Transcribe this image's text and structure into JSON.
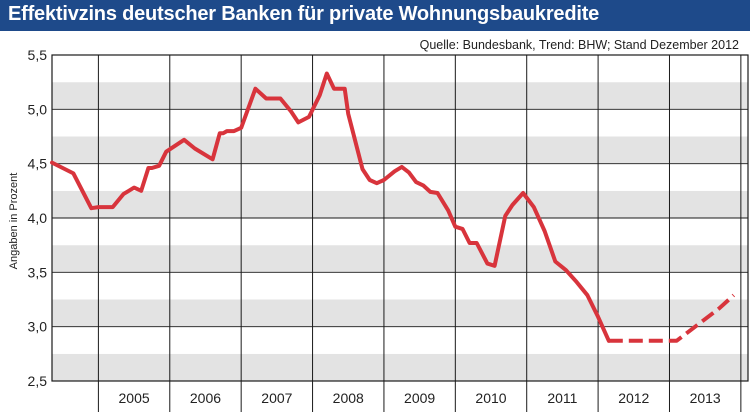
{
  "title": "Effektivzins deutscher Banken für private Wohnungsbaukredite",
  "colors": {
    "title_bg": "#1e4a8a",
    "title_text": "#ffffff",
    "band_shaded": "#e3e3e3",
    "band_white": "#ffffff",
    "line": "#d8343c",
    "grid": "#1a1a1a"
  },
  "chart_data": {
    "type": "line",
    "title": "Effektivzins deutscher Banken für private Wohnungsbaukredite",
    "source": "Quelle: Bundesbank, Trend: BHW; Stand Dezember 2012",
    "ylabel": "Angaben in Prozent",
    "xlabel": "",
    "ylim": [
      2.5,
      5.5
    ],
    "yticks": [
      "2,5",
      "3,0",
      "3,5",
      "4,0",
      "4,5",
      "5,0",
      "5,5"
    ],
    "ytick_values": [
      2.5,
      3.0,
      3.5,
      4.0,
      4.5,
      5.0,
      5.5
    ],
    "xlim": [
      2004.35,
      2014.1
    ],
    "years": [
      "2005",
      "2006",
      "2007",
      "2008",
      "2009",
      "2010",
      "2011",
      "2012",
      "2013"
    ],
    "grid": true,
    "legend": "none",
    "series": [
      {
        "style": "solid",
        "x": [
          2004.35,
          2004.5,
          2004.65,
          2004.9,
          2005.0,
          2005.2,
          2005.35,
          2005.5,
          2005.6,
          2005.7,
          2005.75,
          2005.85,
          2005.95,
          2006.2,
          2006.35,
          2006.6,
          2006.7,
          2006.75,
          2006.8,
          2006.9,
          2007.0,
          2007.2,
          2007.35,
          2007.55,
          2007.7,
          2007.8,
          2007.95,
          2008.1,
          2008.2,
          2008.3,
          2008.45,
          2008.5,
          2008.7,
          2008.8,
          2008.9,
          2009.0,
          2009.15,
          2009.25,
          2009.35,
          2009.45,
          2009.55,
          2009.65,
          2009.75,
          2009.9,
          2010.0,
          2010.1,
          2010.2,
          2010.3,
          2010.45,
          2010.55,
          2010.7,
          2010.8,
          2010.95,
          2011.1,
          2011.25,
          2011.4,
          2011.55,
          2011.7,
          2011.85,
          2012.0,
          2012.15
        ],
        "y": [
          4.51,
          4.46,
          4.41,
          4.09,
          4.1,
          4.1,
          4.22,
          4.28,
          4.25,
          4.46,
          4.46,
          4.48,
          4.61,
          4.72,
          4.64,
          4.54,
          4.78,
          4.78,
          4.8,
          4.8,
          4.83,
          5.19,
          5.1,
          5.1,
          4.98,
          4.88,
          4.93,
          5.13,
          5.33,
          5.19,
          5.19,
          4.96,
          4.45,
          4.35,
          4.32,
          4.35,
          4.43,
          4.47,
          4.42,
          4.33,
          4.3,
          4.24,
          4.23,
          4.07,
          3.92,
          3.9,
          3.77,
          3.77,
          3.58,
          3.56,
          4.02,
          4.12,
          4.23,
          4.1,
          3.88,
          3.6,
          3.52,
          3.41,
          3.29,
          3.09,
          2.87
        ]
      },
      {
        "style": "dashed",
        "x": [
          2012.15,
          2012.5,
          2012.8,
          2013.1,
          2013.4,
          2013.7,
          2013.9
        ],
        "y": [
          2.87,
          2.87,
          2.87,
          2.87,
          3.02,
          3.17,
          3.29
        ]
      }
    ]
  }
}
